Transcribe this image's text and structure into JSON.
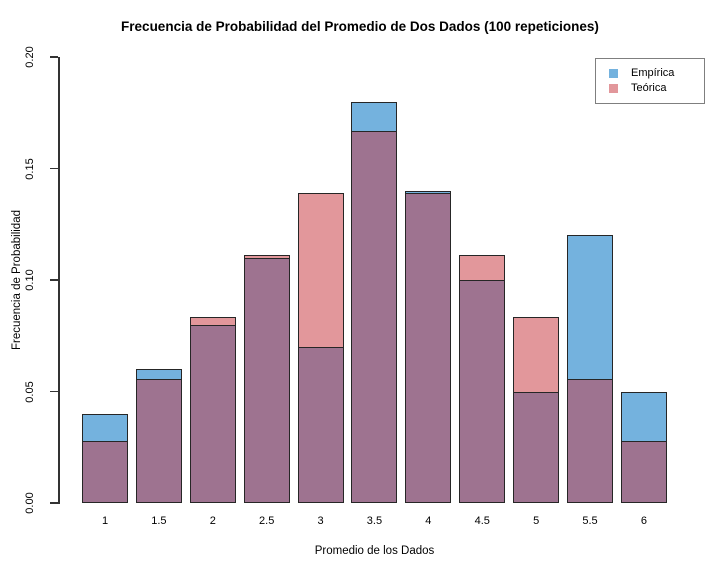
{
  "title": "Frecuencia de Probabilidad del Promedio de Dos Dados (100 repeticiones)",
  "chart_data": {
    "type": "bar",
    "subtype": "overlaid-transparent-histogram",
    "title": "Frecuencia de Probabilidad del Promedio de Dos Dados (100 repeticiones)",
    "xlabel": "Promedio de los Dados",
    "ylabel": "Frecuencia de Probabilidad",
    "categories": [
      "1",
      "1.5",
      "2",
      "2.5",
      "3",
      "3.5",
      "4",
      "4.5",
      "5",
      "5.5",
      "6"
    ],
    "series": [
      {
        "name": "Empírica",
        "color": "#74B2DE",
        "values": [
          0.04,
          0.06,
          0.08,
          0.11,
          0.07,
          0.18,
          0.14,
          0.1,
          0.05,
          0.12,
          0.05
        ]
      },
      {
        "name": "Teórica",
        "color": "#E2979B",
        "values": [
          0.0278,
          0.0556,
          0.0833,
          0.1111,
          0.1389,
          0.1667,
          0.1389,
          0.1111,
          0.0833,
          0.0556,
          0.0278
        ]
      }
    ],
    "overlap_color": "#9E7390",
    "bar_border_color": "#262626",
    "ylim": [
      0,
      0.2
    ],
    "yticks": [
      {
        "value": 0.0,
        "label": "0.00"
      },
      {
        "value": 0.05,
        "label": "0.05"
      },
      {
        "value": 0.1,
        "label": "0.10"
      },
      {
        "value": 0.15,
        "label": "0.15"
      },
      {
        "value": 0.2,
        "label": "0.20"
      }
    ],
    "legend_position": "top-right",
    "grid": false
  }
}
